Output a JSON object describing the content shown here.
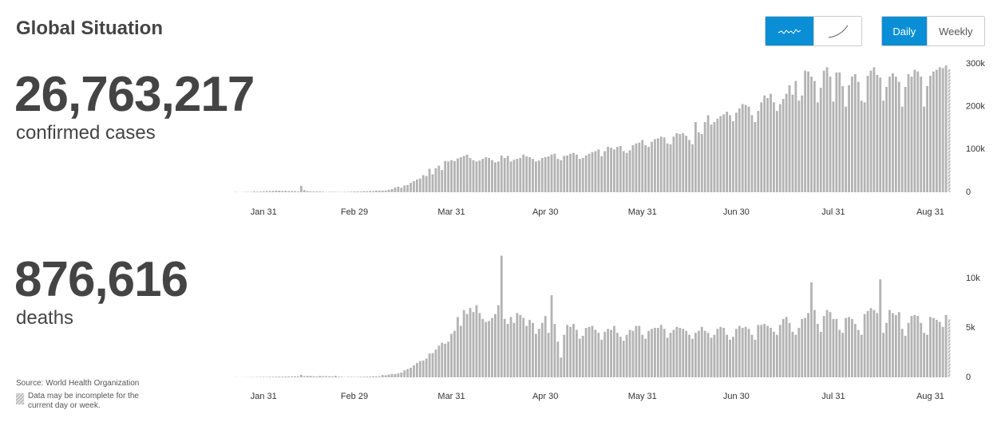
{
  "header": {
    "title": "Global Situation",
    "view_buttons": [
      "Daily",
      "Weekly"
    ]
  },
  "summary": [
    {
      "number": "26,763,217",
      "label": "confirmed cases"
    },
    {
      "number": "876,616",
      "label": "deaths"
    }
  ],
  "footer": {
    "source": "Source: World Health Organization",
    "note": "Data may be incomplete for the current day or week."
  },
  "chart_data": [
    {
      "type": "bar",
      "color": "#b3b3b3",
      "grid": false,
      "xlim": [
        -0.5,
        228.5
      ],
      "xticks": [
        {
          "value": 9,
          "label": "Jan 31"
        },
        {
          "value": 38,
          "label": "Feb 29"
        },
        {
          "value": 69,
          "label": "Mar 31"
        },
        {
          "value": 99,
          "label": "Apr 30"
        },
        {
          "value": 130,
          "label": "May 31"
        },
        {
          "value": 160,
          "label": "Jun 30"
        },
        {
          "value": 191,
          "label": "Jul 31"
        },
        {
          "value": 222,
          "label": "Aug 31"
        }
      ],
      "ylim": [
        0,
        300000
      ],
      "yticks": [
        0,
        {
          "value": 100000,
          "label": "100k"
        },
        {
          "value": 200000,
          "label": "200k"
        },
        {
          "value": 300000,
          "label": "300k"
        }
      ],
      "values": [
        600,
        100,
        300,
        700,
        700,
        800,
        1700,
        1500,
        1800,
        2100,
        2600,
        2800,
        3200,
        3900,
        3700,
        3200,
        3400,
        2700,
        3000,
        2600,
        2000,
        15100,
        5100,
        2600,
        2100,
        2000,
        1900,
        1700,
        1300,
        500,
        1000,
        1000,
        900,
        700,
        600,
        900,
        1100,
        1400,
        1800,
        1900,
        2000,
        2500,
        2300,
        2800,
        2800,
        4000,
        3900,
        4000,
        4000,
        6000,
        7500,
        11000,
        13000,
        10500,
        16000,
        17000,
        22000,
        26000,
        30000,
        32000,
        40000,
        38000,
        55000,
        42000,
        56000,
        62000,
        52000,
        73000,
        72000,
        75000,
        73000,
        79000,
        82000,
        85000,
        88000,
        80000,
        75000,
        72000,
        74000,
        78000,
        82000,
        80000,
        75000,
        70000,
        72000,
        86000,
        80000,
        85000,
        72000,
        76000,
        78000,
        80000,
        88000,
        84000,
        82000,
        78000,
        72000,
        74000,
        80000,
        82000,
        84000,
        88000,
        90000,
        78000,
        75000,
        85000,
        86000,
        90000,
        92000,
        88000,
        78000,
        80000,
        86000,
        90000,
        94000,
        96000,
        100000,
        84000,
        96000,
        106000,
        104000,
        100000,
        106000,
        108000,
        96000,
        92000,
        98000,
        110000,
        114000,
        116000,
        122000,
        110000,
        106000,
        118000,
        124000,
        126000,
        130000,
        128000,
        114000,
        112000,
        130000,
        138000,
        136000,
        138000,
        132000,
        122000,
        112000,
        164000,
        140000,
        136000,
        164000,
        180000,
        158000,
        164000,
        172000,
        178000,
        182000,
        188000,
        180000,
        166000,
        186000,
        196000,
        206000,
        204000,
        200000,
        180000,
        164000,
        190000,
        210000,
        226000,
        220000,
        230000,
        210000,
        190000,
        206000,
        218000,
        230000,
        250000,
        228000,
        260000,
        214000,
        226000,
        284000,
        282000,
        270000,
        260000,
        210000,
        244000,
        284000,
        292000,
        270000,
        212000,
        280000,
        280000,
        248000,
        200000,
        250000,
        270000,
        276000,
        258000,
        214000,
        210000,
        272000,
        284000,
        292000,
        274000,
        268000,
        214000,
        246000,
        270000,
        278000,
        270000,
        258000,
        200000,
        246000,
        276000,
        270000,
        286000,
        282000,
        270000,
        200000,
        248000,
        272000,
        282000,
        286000,
        292000,
        290000,
        296000,
        288000
      ]
    },
    {
      "type": "bar",
      "color": "#b3b3b3",
      "grid": false,
      "xlim": [
        -0.5,
        228.5
      ],
      "xticks": [
        {
          "value": 9,
          "label": "Jan 31"
        },
        {
          "value": 38,
          "label": "Feb 29"
        },
        {
          "value": 69,
          "label": "Mar 31"
        },
        {
          "value": 99,
          "label": "Apr 30"
        },
        {
          "value": 130,
          "label": "May 31"
        },
        {
          "value": 160,
          "label": "Jun 30"
        },
        {
          "value": 191,
          "label": "Jul 31"
        },
        {
          "value": 222,
          "label": "Aug 31"
        }
      ],
      "ylim": [
        0,
        12500
      ],
      "yticks": [
        0,
        {
          "value": 5000,
          "label": "5k"
        },
        {
          "value": 10000,
          "label": "10k"
        }
      ],
      "values": [
        17,
        0,
        8,
        16,
        14,
        26,
        26,
        38,
        43,
        46,
        45,
        57,
        64,
        65,
        73,
        73,
        86,
        89,
        97,
        108,
        97,
        254,
        121,
        143,
        142,
        106,
        98,
        139,
        115,
        118,
        109,
        97,
        150,
        71,
        52,
        29,
        44,
        47,
        35,
        42,
        56,
        65,
        71,
        81,
        112,
        101,
        105,
        229,
        209,
        281,
        343,
        338,
        398,
        480,
        700,
        835,
        960,
        1210,
        1450,
        1650,
        1700,
        1900,
        2400,
        2450,
        2800,
        3200,
        3500,
        3400,
        3600,
        4400,
        4700,
        6100,
        5200,
        6800,
        6400,
        7000,
        6600,
        7300,
        6500,
        5900,
        5600,
        5700,
        6000,
        6400,
        7300,
        12300,
        5900,
        5400,
        6100,
        5500,
        6500,
        6300,
        6000,
        5200,
        5800,
        5500,
        4400,
        4900,
        5500,
        6200,
        4500,
        8300,
        5400,
        3600,
        2000,
        4300,
        5300,
        5100,
        5400,
        4800,
        3900,
        4200,
        5000,
        5100,
        5200,
        4800,
        4500,
        3800,
        4600,
        4900,
        4800,
        5200,
        4500,
        4100,
        3700,
        4300,
        4800,
        4700,
        5200,
        5200,
        4300,
        3900,
        4700,
        4900,
        5000,
        5000,
        5300,
        4900,
        4000,
        4500,
        4800,
        5100,
        5000,
        4900,
        4700,
        4300,
        3900,
        4500,
        4700,
        5100,
        4700,
        4500,
        4000,
        4300,
        4900,
        5100,
        5000,
        4300,
        3800,
        4100,
        4900,
        5200,
        5000,
        5100,
        4900,
        4300,
        3800,
        5300,
        5300,
        5400,
        5200,
        5000,
        4600,
        4300,
        5300,
        5900,
        6100,
        5500,
        4600,
        4300,
        5000,
        5900,
        6000,
        6500,
        9600,
        6800,
        5400,
        4600,
        6200,
        6800,
        6600,
        5900,
        5900,
        4800,
        4500,
        6000,
        6100,
        5900,
        5400,
        4800,
        4300,
        6400,
        6700,
        7000,
        6800,
        6500,
        9900,
        4500,
        5500,
        6800,
        6500,
        6300,
        6600,
        4900,
        4200,
        5500,
        6200,
        6300,
        6200,
        5500,
        4500,
        4300,
        6100,
        6000,
        5800,
        5600,
        5100,
        6300,
        5900
      ]
    }
  ]
}
